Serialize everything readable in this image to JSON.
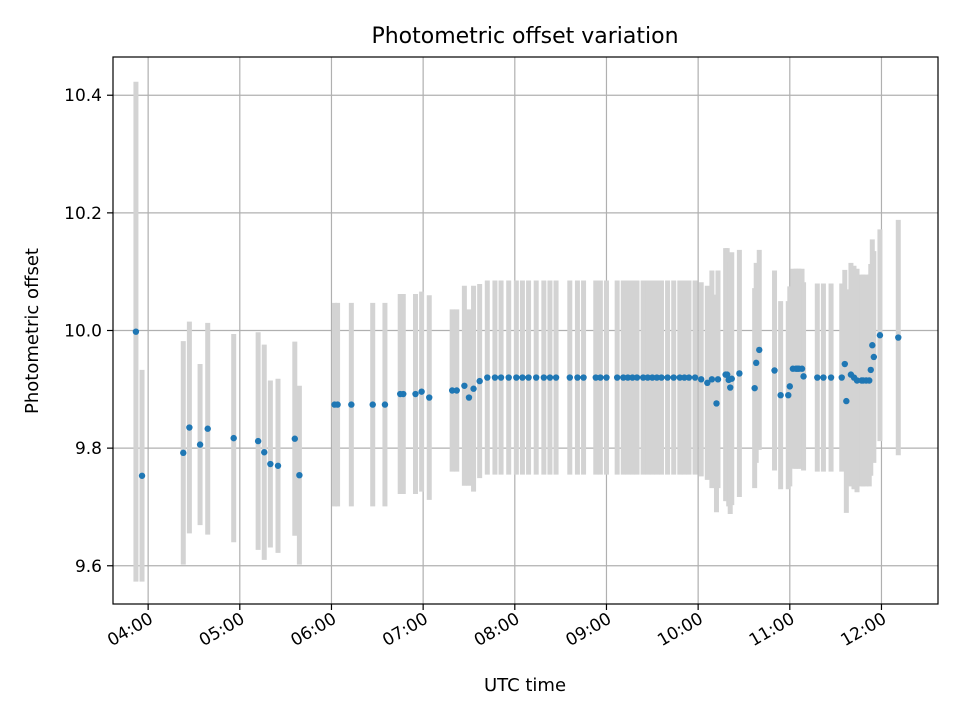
{
  "chart_data": {
    "type": "scatter",
    "title": "Photometric offset variation",
    "xlabel": "UTC time",
    "ylabel": "Photometric offset",
    "ylim": [
      9.535,
      10.465
    ],
    "xlim": [
      "03:37",
      "12:37"
    ],
    "x_ticks": [
      "04:00",
      "05:00",
      "06:00",
      "07:00",
      "08:00",
      "09:00",
      "10:00",
      "11:00",
      "12:00"
    ],
    "y_ticks": [
      "9.6",
      "9.8",
      "10.0",
      "10.2",
      "10.4"
    ],
    "y_tick_values": [
      9.6,
      9.8,
      10.0,
      10.2,
      10.4
    ],
    "grid": true,
    "colors": {
      "points": "#1f77b4",
      "error_bars": "#d3d3d3",
      "grid": "#b0b0b0"
    },
    "series": [
      {
        "x": [
          "03:52",
          "03:56",
          "04:23",
          "04:27",
          "04:34",
          "04:39",
          "04:56",
          "05:12",
          "05:16",
          "05:20",
          "05:25",
          "05:36",
          "05:39",
          "06:02",
          "06:04",
          "06:13",
          "06:27",
          "06:35",
          "06:45",
          "06:47",
          "06:55",
          "06:59",
          "07:04",
          "07:19",
          "07:22",
          "07:27",
          "07:30",
          "07:33",
          "07:37",
          "07:42",
          "07:47",
          "07:51",
          "07:56",
          "08:01",
          "08:05",
          "08:09",
          "08:14",
          "08:19",
          "08:23",
          "08:27",
          "08:36",
          "08:41",
          "08:45",
          "08:53",
          "08:56",
          "09:00",
          "09:07",
          "09:11",
          "09:14",
          "09:17",
          "09:20",
          "09:24",
          "09:27",
          "09:30",
          "09:33",
          "09:36",
          "09:40",
          "09:44",
          "09:48",
          "09:51",
          "09:54",
          "09:58",
          "10:02",
          "10:06",
          "10:09",
          "10:12",
          "10:13",
          "10:18",
          "10:19",
          "10:20",
          "10:21",
          "10:22",
          "10:27",
          "10:37",
          "10:38",
          "10:40",
          "10:50",
          "10:54",
          "10:59",
          "11:00",
          "11:02",
          "11:04",
          "11:05",
          "11:06",
          "11:08",
          "11:09",
          "11:18",
          "11:22",
          "11:27",
          "11:34",
          "11:36",
          "11:37",
          "11:40",
          "11:42",
          "11:44",
          "11:47",
          "11:48",
          "11:50",
          "11:52",
          "11:53",
          "11:54",
          "11:55",
          "11:59",
          "12:11"
        ],
        "y": [
          9.998,
          9.753,
          9.792,
          9.835,
          9.806,
          9.833,
          9.817,
          9.812,
          9.793,
          9.773,
          9.77,
          9.816,
          9.754,
          9.874,
          9.874,
          9.874,
          9.874,
          9.874,
          9.892,
          9.892,
          9.892,
          9.896,
          9.886,
          9.898,
          9.898,
          9.906,
          9.886,
          9.901,
          9.914,
          9.92,
          9.92,
          9.92,
          9.92,
          9.92,
          9.92,
          9.92,
          9.92,
          9.92,
          9.92,
          9.92,
          9.92,
          9.92,
          9.92,
          9.92,
          9.92,
          9.92,
          9.92,
          9.92,
          9.92,
          9.92,
          9.92,
          9.92,
          9.92,
          9.92,
          9.92,
          9.92,
          9.92,
          9.92,
          9.92,
          9.92,
          9.92,
          9.92,
          9.917,
          9.911,
          9.917,
          9.876,
          9.917,
          9.925,
          9.925,
          9.916,
          9.903,
          9.918,
          9.927,
          9.902,
          9.945,
          9.967,
          9.932,
          9.89,
          9.89,
          9.905,
          9.935,
          9.935,
          9.935,
          9.935,
          9.935,
          9.922,
          9.92,
          9.92,
          9.92,
          9.92,
          9.943,
          9.88,
          9.925,
          9.92,
          9.915,
          9.915,
          9.915,
          9.915,
          9.915,
          9.933,
          9.975,
          9.955,
          9.992,
          9.988
        ],
        "yerr": [
          0.425,
          0.18,
          0.19,
          0.18,
          0.137,
          0.18,
          0.177,
          0.185,
          0.183,
          0.142,
          0.148,
          0.165,
          0.152,
          0.173,
          0.173,
          0.173,
          0.173,
          0.173,
          0.17,
          0.17,
          0.17,
          0.17,
          0.174,
          0.138,
          0.138,
          0.17,
          0.15,
          0.175,
          0.165,
          0.165,
          0.165,
          0.165,
          0.165,
          0.165,
          0.165,
          0.165,
          0.165,
          0.165,
          0.165,
          0.165,
          0.165,
          0.165,
          0.165,
          0.165,
          0.165,
          0.165,
          0.165,
          0.165,
          0.165,
          0.165,
          0.165,
          0.165,
          0.165,
          0.165,
          0.165,
          0.165,
          0.165,
          0.165,
          0.165,
          0.165,
          0.165,
          0.165,
          0.165,
          0.165,
          0.185,
          0.185,
          0.185,
          0.215,
          0.215,
          0.215,
          0.215,
          0.215,
          0.21,
          0.17,
          0.17,
          0.17,
          0.17,
          0.16,
          0.16,
          0.17,
          0.17,
          0.17,
          0.17,
          0.17,
          0.17,
          0.16,
          0.16,
          0.16,
          0.16,
          0.16,
          0.16,
          0.19,
          0.19,
          0.19,
          0.19,
          0.18,
          0.18,
          0.18,
          0.18,
          0.18,
          0.18,
          0.18,
          0.18,
          0.2
        ]
      }
    ]
  }
}
